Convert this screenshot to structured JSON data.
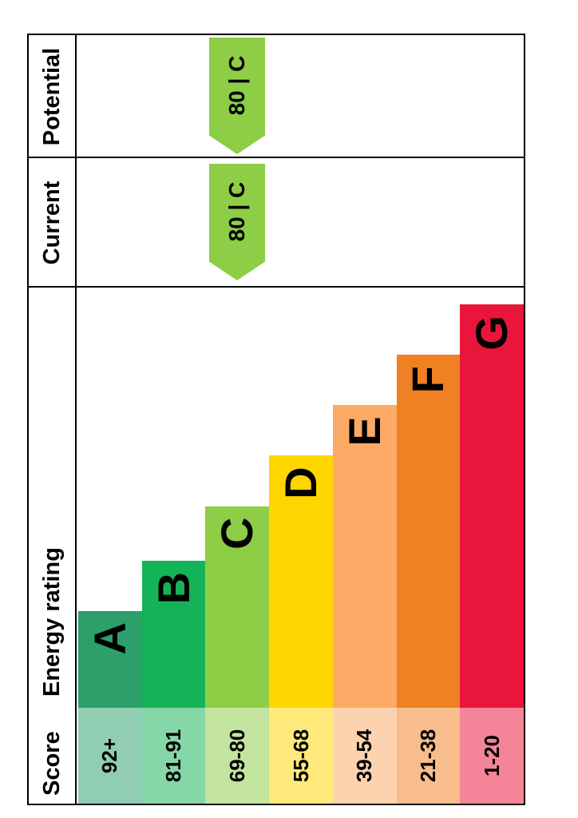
{
  "chart_data": {
    "type": "bar",
    "title": "Energy rating",
    "chart_kind": "epc-energy-efficiency-rating",
    "headers": {
      "score": "Score",
      "rating": "Energy rating",
      "current": "Current",
      "potential": "Potential"
    },
    "categories": [
      "A",
      "B",
      "C",
      "D",
      "E",
      "F",
      "G"
    ],
    "bands": [
      {
        "letter": "A",
        "score": "92+",
        "color": "#2c9f6b",
        "tint": "#91cdb2",
        "width_pct": 23
      },
      {
        "letter": "B",
        "score": "81-91",
        "color": "#15b357",
        "tint": "#85d7a8",
        "width_pct": 35
      },
      {
        "letter": "C",
        "score": "69-80",
        "color": "#8dce46",
        "tint": "#c4e59f",
        "width_pct": 48
      },
      {
        "letter": "D",
        "score": "55-68",
        "color": "#ffd500",
        "tint": "#ffe97a",
        "width_pct": 60
      },
      {
        "letter": "E",
        "score": "39-54",
        "color": "#fcaa65",
        "tint": "#fdd3af",
        "width_pct": 72
      },
      {
        "letter": "F",
        "score": "21-38",
        "color": "#ef8023",
        "tint": "#f7bd8d",
        "width_pct": 84
      },
      {
        "letter": "G",
        "score": "1-20",
        "color": "#e9153b",
        "tint": "#f48599",
        "width_pct": 96
      }
    ],
    "current": {
      "value": 80,
      "band": "C",
      "label": "80 | C",
      "color": "#8dce46",
      "band_index": 2
    },
    "potential": {
      "value": 80,
      "band": "C",
      "label": "80 | C",
      "color": "#8dce46",
      "band_index": 2
    }
  }
}
